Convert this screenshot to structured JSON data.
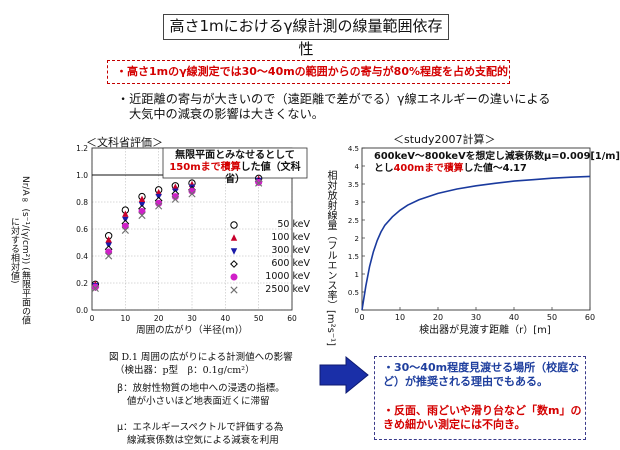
{
  "slide": {
    "title": "高さ1mにおけるγ線計測の線量範囲依存性",
    "highlight": "・高さ1mのγ線測定では30～40mの範囲からの寄与が80%程度を占め支配的",
    "note_line1": "・近距離の寄与が大きいので（遠距離で差がでる）γ線エネルギーの違いによる",
    "note_line2": "大気中の減衰の影響は大きくない。",
    "left_header": "＜文科省評価＞",
    "right_header": "＜study2007計算＞",
    "left_inbox_line1": "無限平面とみなせるとして",
    "left_inbox_line2_red": "150mまで積算",
    "left_inbox_line2_rest": "した値（文科省）",
    "right_inbox_line1": "600keV～800keVを想定し減衰係数μ=0.009[1/m]",
    "right_inbox_line2_pre": "とし",
    "right_inbox_line2_red": "400mまで積算",
    "right_inbox_line2_rest": "した値～4.17",
    "caption": "図 D.1 周囲の広がりによる計測値への影響",
    "caption_sub": "（検出器：p型　β：0.1g/cm²）",
    "beta_line1": "β：放射性物質の地中への浸透の指標。",
    "beta_line2": "値が小さいほど地表面近くに滞留",
    "mu_line1": "μ：エネルギースペクトルで評価する為",
    "mu_line2": "線減衰係数は空気による減衰を利用",
    "conclusion_1": "・30～40m程度見渡せる場所（校庭など）が推奨される理由でもある。",
    "conclusion_2": "・反面、雨どいや滑り台など「数m」のきめ細かい測定には不向き。",
    "colors": {
      "red": "#d40000",
      "blue": "#1f3f9e",
      "arrow": "#1a2fa8",
      "curve": "#1a3a9e"
    }
  },
  "chart_data": [
    {
      "type": "scatter",
      "title": "",
      "xlabel": "周囲の広がり（半径(m)）",
      "ylabel": "Nr/A∞ (s⁻¹/(γ/cm²)) (無限平面の値に対する相対値)",
      "xlim": [
        0,
        60
      ],
      "ylim": [
        0,
        1.2
      ],
      "x_ticks": [
        0,
        10,
        20,
        30,
        40,
        50,
        60
      ],
      "y_ticks": [
        0,
        0.2,
        0.4,
        0.6,
        0.8,
        1.0,
        1.2
      ],
      "reference_line_y": 1.0,
      "grid": true,
      "legend_position": "right",
      "x": [
        1,
        5,
        10,
        15,
        20,
        25,
        30,
        50
      ],
      "series": [
        {
          "name": "50 keV",
          "marker": "open-circle",
          "color": "#000000",
          "values": [
            0.19,
            0.55,
            0.74,
            0.84,
            0.89,
            0.92,
            0.94,
            0.975
          ]
        },
        {
          "name": "100 keV",
          "marker": "triangle-up",
          "color": "#c8002c",
          "values": [
            0.19,
            0.52,
            0.71,
            0.82,
            0.87,
            0.91,
            0.93,
            0.97
          ]
        },
        {
          "name": "300 keV",
          "marker": "triangle-down",
          "color": "#1a1aa8",
          "values": [
            0.18,
            0.48,
            0.67,
            0.78,
            0.84,
            0.88,
            0.91,
            0.96
          ]
        },
        {
          "name": "600 keV",
          "marker": "open-diamond",
          "color": "#000000",
          "values": [
            0.17,
            0.45,
            0.64,
            0.75,
            0.81,
            0.86,
            0.89,
            0.95
          ]
        },
        {
          "name": "1000 keV",
          "marker": "filled-circle",
          "color": "#d020c8",
          "values": [
            0.17,
            0.43,
            0.62,
            0.73,
            0.79,
            0.84,
            0.88,
            0.945
          ]
        },
        {
          "name": "2500 keV",
          "marker": "x",
          "color": "#707070",
          "values": [
            0.16,
            0.4,
            0.59,
            0.7,
            0.77,
            0.82,
            0.86,
            0.94
          ]
        }
      ]
    },
    {
      "type": "line",
      "title": "",
      "xlabel": "検出器が見渡す距離（r）[m]",
      "ylabel": "相対放射線量（フルエンス率）[m²s⁻¹]",
      "xlim": [
        0,
        60
      ],
      "ylim": [
        0,
        4.5
      ],
      "x_ticks": [
        0,
        10,
        20,
        30,
        40,
        50,
        60
      ],
      "y_ticks": [
        0,
        0.5,
        1,
        1.5,
        2,
        2.5,
        3,
        3.5,
        4,
        4.5
      ],
      "grid": false,
      "series": [
        {
          "name": "",
          "color": "#1a3a9e",
          "x": [
            0,
            1,
            2,
            3,
            4,
            5,
            6,
            8,
            10,
            12,
            15,
            20,
            25,
            30,
            35,
            40,
            45,
            50,
            55,
            60
          ],
          "values": [
            0,
            0.66,
            1.21,
            1.62,
            1.93,
            2.17,
            2.35,
            2.59,
            2.77,
            2.91,
            3.06,
            3.24,
            3.36,
            3.45,
            3.52,
            3.58,
            3.62,
            3.66,
            3.69,
            3.71
          ]
        }
      ]
    }
  ]
}
